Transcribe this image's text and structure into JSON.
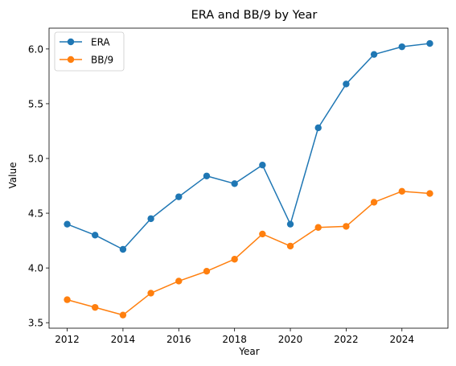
{
  "chart_data": {
    "type": "line",
    "title": "ERA and BB/9 by Year",
    "xlabel": "Year",
    "ylabel": "Value",
    "x": [
      2012,
      2013,
      2014,
      2015,
      2016,
      2017,
      2018,
      2019,
      2020,
      2021,
      2022,
      2023,
      2024,
      2025
    ],
    "xticks": [
      2012,
      2014,
      2016,
      2018,
      2020,
      2022,
      2024
    ],
    "yticks": [
      "3.5",
      "4.0",
      "4.5",
      "5.0",
      "5.5",
      "6.0"
    ],
    "xlim": [
      2011.35,
      2025.65
    ],
    "ylim": [
      3.45,
      6.19
    ],
    "grid": false,
    "legend_position": "top-left",
    "series": [
      {
        "name": "ERA",
        "color": "#1f77b4",
        "marker": "circle",
        "values": [
          4.4,
          4.3,
          4.17,
          4.45,
          4.65,
          4.84,
          4.77,
          4.94,
          4.4,
          5.28,
          5.68,
          5.95,
          6.02,
          6.05
        ]
      },
      {
        "name": "BB/9",
        "color": "#ff7f0e",
        "marker": "circle",
        "values": [
          3.71,
          3.64,
          3.57,
          3.77,
          3.88,
          3.97,
          4.08,
          4.31,
          4.2,
          4.37,
          4.38,
          4.6,
          4.7,
          4.68
        ]
      }
    ]
  }
}
